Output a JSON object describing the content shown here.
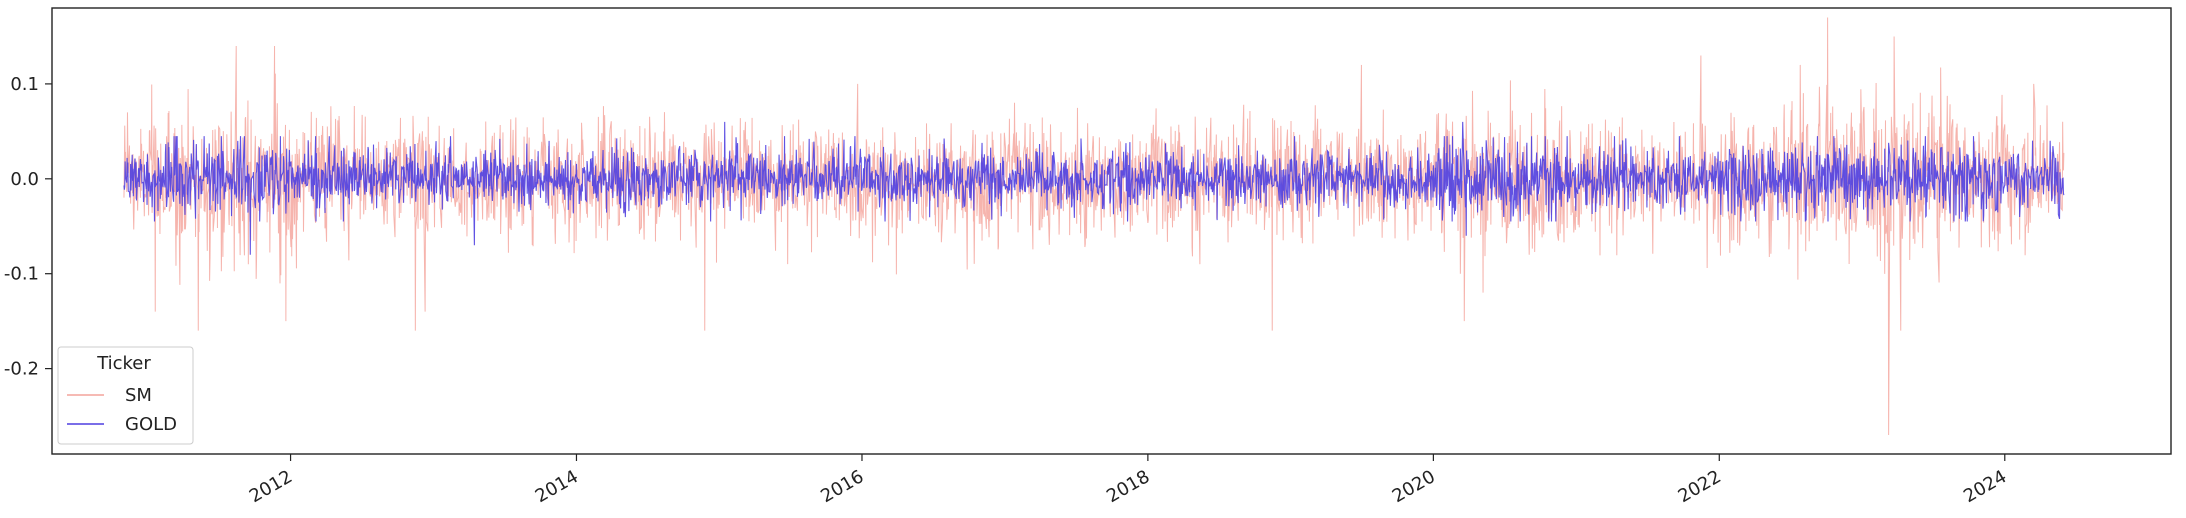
{
  "chart_data": {
    "type": "line",
    "title": "",
    "xlabel": "",
    "ylabel": "",
    "x_range": [
      "2010-05-01",
      "2025-03-01"
    ],
    "y_range": [
      -0.29,
      0.18
    ],
    "xticks": [
      "2012",
      "2014",
      "2016",
      "2018",
      "2020",
      "2022",
      "2024"
    ],
    "yticks": [
      "0.1",
      "0.0",
      "-0.1",
      "-0.2"
    ],
    "ytick_values": [
      0.1,
      0.0,
      -0.1,
      -0.2
    ],
    "legend_title": "Ticker",
    "legend_position": "lower-left",
    "grid": false,
    "series": [
      {
        "name": "SM",
        "color": "#f4a39b",
        "start": "2010-11-01",
        "end": "2024-06-01",
        "typical_abs_return": 0.03,
        "visible_spikes": [
          {
            "date": "2010-11-10",
            "value": 0.07
          },
          {
            "date": "2011-01-20",
            "value": -0.14
          },
          {
            "date": "2011-05-10",
            "value": -0.16
          },
          {
            "date": "2011-08-15",
            "value": 0.14
          },
          {
            "date": "2011-09-15",
            "value": -0.09
          },
          {
            "date": "2011-11-20",
            "value": 0.14
          },
          {
            "date": "2011-12-20",
            "value": -0.15
          },
          {
            "date": "2012-11-15",
            "value": -0.16
          },
          {
            "date": "2012-12-10",
            "value": -0.14
          },
          {
            "date": "2014-11-25",
            "value": -0.16
          },
          {
            "date": "2015-12-20",
            "value": 0.1
          },
          {
            "date": "2018-11-15",
            "value": -0.16
          },
          {
            "date": "2019-07-01",
            "value": 0.12
          },
          {
            "date": "2020-03-10",
            "value": -0.1
          },
          {
            "date": "2020-03-20",
            "value": -0.15
          },
          {
            "date": "2021-11-15",
            "value": 0.13
          },
          {
            "date": "2022-10-05",
            "value": 0.17
          },
          {
            "date": "2023-03-10",
            "value": -0.27
          },
          {
            "date": "2023-03-25",
            "value": 0.15
          },
          {
            "date": "2023-04-10",
            "value": -0.16
          },
          {
            "date": "2024-03-15",
            "value": 0.1
          }
        ]
      },
      {
        "name": "GOLD",
        "color": "#4f3fe0",
        "start": "2010-11-01",
        "end": "2024-06-01",
        "typical_abs_return": 0.015,
        "visible_spikes": [
          {
            "date": "2011-08-20",
            "value": 0.04
          },
          {
            "date": "2011-09-20",
            "value": -0.08
          },
          {
            "date": "2013-04-15",
            "value": -0.07
          },
          {
            "date": "2015-01-15",
            "value": 0.06
          },
          {
            "date": "2020-03-15",
            "value": 0.06
          },
          {
            "date": "2020-03-25",
            "value": -0.06
          }
        ]
      }
    ]
  }
}
